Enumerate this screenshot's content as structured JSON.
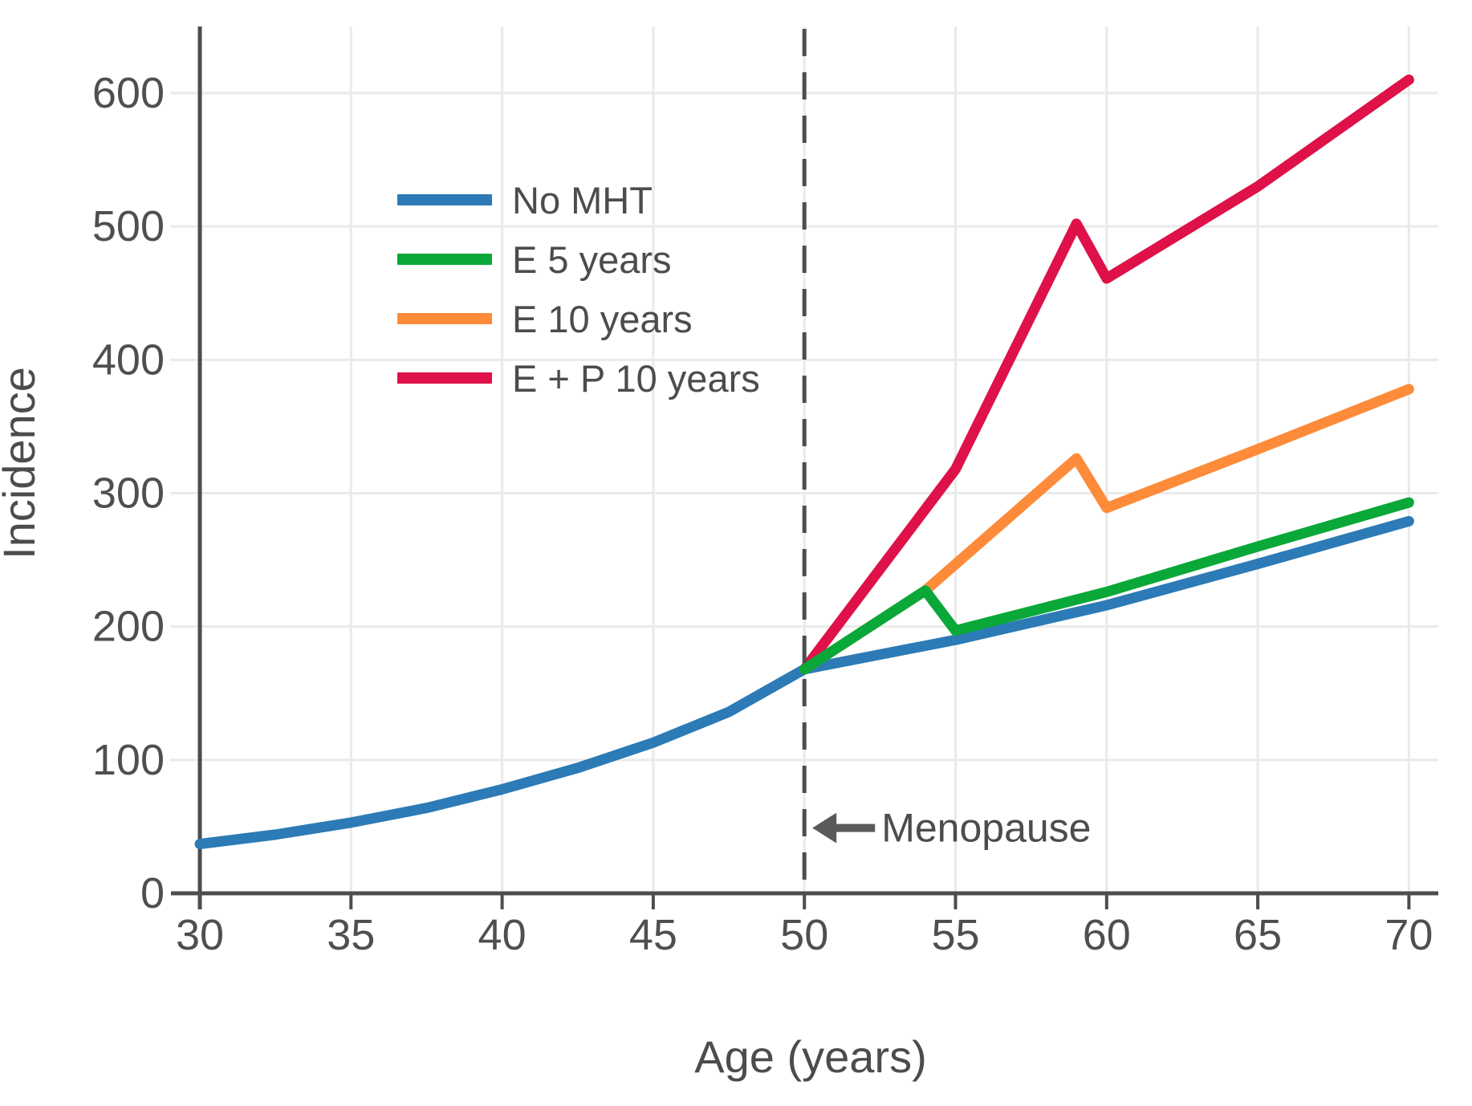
{
  "chart_data": {
    "type": "line",
    "title": "",
    "xlabel": "Age (years)",
    "ylabel": "Incidence",
    "x_ticks": [
      30,
      35,
      40,
      45,
      50,
      55,
      60,
      65,
      70
    ],
    "y_ticks": [
      0,
      100,
      200,
      300,
      400,
      500,
      600
    ],
    "xlim": [
      30,
      71
    ],
    "ylim": [
      0,
      647
    ],
    "grid": true,
    "legend_position": "upper-left-inside",
    "series": [
      {
        "name": "No MHT",
        "color": "#2C7BB6",
        "points": [
          [
            30,
            37
          ],
          [
            32.5,
            44
          ],
          [
            35,
            53
          ],
          [
            37.5,
            64
          ],
          [
            40,
            78
          ],
          [
            42.5,
            94
          ],
          [
            45,
            113
          ],
          [
            47.5,
            136
          ],
          [
            50,
            168
          ],
          [
            55,
            190
          ],
          [
            60,
            216
          ],
          [
            65,
            247
          ],
          [
            70,
            279
          ]
        ]
      },
      {
        "name": "E 5 years",
        "color": "#09A838",
        "points": [
          [
            50,
            168
          ],
          [
            54,
            227
          ],
          [
            55,
            197
          ],
          [
            60,
            226
          ],
          [
            65,
            260
          ],
          [
            70,
            293
          ]
        ]
      },
      {
        "name": "E 10 years",
        "color": "#FD8B3A",
        "points": [
          [
            50,
            168
          ],
          [
            54,
            227
          ],
          [
            59,
            326
          ],
          [
            60,
            289
          ],
          [
            65,
            333
          ],
          [
            70,
            378
          ]
        ]
      },
      {
        "name": "E + P 10 years",
        "color": "#DE1148",
        "points": [
          [
            50,
            168
          ],
          [
            55,
            318
          ],
          [
            59,
            502
          ],
          [
            60,
            461
          ],
          [
            65,
            530
          ],
          [
            70,
            610
          ]
        ]
      }
    ],
    "draw_order": [
      0,
      2,
      3,
      1
    ],
    "reference_line": {
      "x": 50,
      "style": "dashed",
      "color": "#4d4d4d"
    },
    "annotation": {
      "text": "Menopause",
      "arrow": "left",
      "x": 50,
      "y": 49
    },
    "colors": {
      "axis": "#4d4d4d",
      "grid": "#eaeaea",
      "text": "#4f4f4f",
      "arrow": "#5a5a5a",
      "background": "#ffffff"
    }
  }
}
